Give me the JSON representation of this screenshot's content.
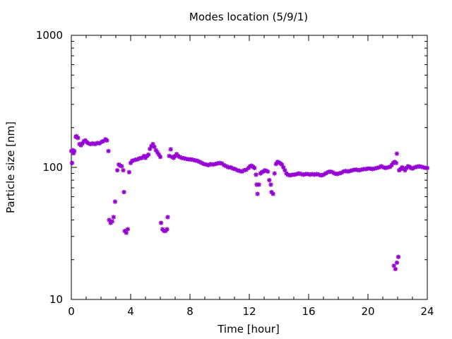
{
  "chart_data": {
    "type": "scatter",
    "title": "Modes location (5/9/1)",
    "xlabel": "Time [hour]",
    "ylabel": "Particle size [nm]",
    "xlim": [
      0,
      24
    ],
    "ylim": [
      10,
      1000
    ],
    "yscale": "log",
    "x_ticks": [
      0,
      4,
      8,
      12,
      16,
      20,
      24
    ],
    "x_tick_labels": [
      "0",
      "4",
      "8",
      "12",
      "16",
      "20",
      "24"
    ],
    "y_ticks": [
      10,
      100,
      1000
    ],
    "y_tick_labels": [
      "10",
      "100",
      "1000"
    ],
    "grid": false,
    "legend": false,
    "marker": "asterisk",
    "color": "#9400d3",
    "series": [
      {
        "points": [
          [
            0.0,
            133
          ],
          [
            0.05,
            108
          ],
          [
            0.1,
            135
          ],
          [
            0.15,
            128
          ],
          [
            0.2,
            133
          ],
          [
            0.3,
            170
          ],
          [
            0.35,
            172
          ],
          [
            0.45,
            167
          ],
          [
            0.55,
            150
          ],
          [
            0.65,
            147
          ],
          [
            0.75,
            152
          ],
          [
            0.85,
            158
          ],
          [
            0.95,
            160
          ],
          [
            1.05,
            155
          ],
          [
            1.15,
            152
          ],
          [
            1.3,
            150
          ],
          [
            1.45,
            152
          ],
          [
            1.6,
            150
          ],
          [
            1.75,
            153
          ],
          [
            1.9,
            152
          ],
          [
            2.05,
            156
          ],
          [
            2.15,
            158
          ],
          [
            2.3,
            163
          ],
          [
            2.4,
            160
          ],
          [
            2.5,
            133
          ],
          [
            2.55,
            40
          ],
          [
            2.65,
            38
          ],
          [
            2.75,
            39
          ],
          [
            2.85,
            42
          ],
          [
            2.95,
            55
          ],
          [
            3.1,
            95
          ],
          [
            3.2,
            105
          ],
          [
            3.3,
            103
          ],
          [
            3.4,
            102
          ],
          [
            3.5,
            95
          ],
          [
            3.55,
            65
          ],
          [
            3.6,
            33
          ],
          [
            3.7,
            32
          ],
          [
            3.8,
            34
          ],
          [
            3.9,
            92
          ],
          [
            4.0,
            108
          ],
          [
            4.1,
            112
          ],
          [
            4.2,
            113
          ],
          [
            4.3,
            114
          ],
          [
            4.45,
            115
          ],
          [
            4.6,
            117
          ],
          [
            4.75,
            118
          ],
          [
            4.9,
            122
          ],
          [
            5.0,
            118
          ],
          [
            5.1,
            122
          ],
          [
            5.2,
            125
          ],
          [
            5.3,
            138
          ],
          [
            5.4,
            145
          ],
          [
            5.5,
            150
          ],
          [
            5.6,
            143
          ],
          [
            5.7,
            135
          ],
          [
            5.8,
            130
          ],
          [
            5.9,
            125
          ],
          [
            6.0,
            120
          ],
          [
            6.05,
            38
          ],
          [
            6.15,
            34
          ],
          [
            6.25,
            33
          ],
          [
            6.35,
            33
          ],
          [
            6.45,
            34
          ],
          [
            6.5,
            42
          ],
          [
            6.6,
            122
          ],
          [
            6.7,
            137
          ],
          [
            6.8,
            120
          ],
          [
            6.9,
            118
          ],
          [
            7.0,
            122
          ],
          [
            7.1,
            126
          ],
          [
            7.2,
            122
          ],
          [
            7.3,
            120
          ],
          [
            7.45,
            118
          ],
          [
            7.6,
            117
          ],
          [
            7.75,
            116
          ],
          [
            7.9,
            115
          ],
          [
            8.05,
            115
          ],
          [
            8.2,
            114
          ],
          [
            8.35,
            113
          ],
          [
            8.5,
            112
          ],
          [
            8.65,
            110
          ],
          [
            8.8,
            108
          ],
          [
            8.95,
            106
          ],
          [
            9.1,
            105
          ],
          [
            9.25,
            104
          ],
          [
            9.4,
            106
          ],
          [
            9.55,
            105
          ],
          [
            9.7,
            106
          ],
          [
            9.85,
            107
          ],
          [
            10.0,
            108
          ],
          [
            10.15,
            107
          ],
          [
            10.3,
            104
          ],
          [
            10.45,
            102
          ],
          [
            10.6,
            100
          ],
          [
            10.75,
            100
          ],
          [
            10.9,
            98
          ],
          [
            11.05,
            97
          ],
          [
            11.2,
            95
          ],
          [
            11.35,
            94
          ],
          [
            11.5,
            93
          ],
          [
            11.65,
            95
          ],
          [
            11.8,
            96
          ],
          [
            11.95,
            99
          ],
          [
            12.05,
            102
          ],
          [
            12.15,
            103
          ],
          [
            12.25,
            101
          ],
          [
            12.35,
            99
          ],
          [
            12.45,
            88
          ],
          [
            12.5,
            74
          ],
          [
            12.55,
            63
          ],
          [
            12.65,
            74
          ],
          [
            12.75,
            90
          ],
          [
            12.85,
            92
          ],
          [
            12.95,
            93
          ],
          [
            13.05,
            95
          ],
          [
            13.15,
            94
          ],
          [
            13.25,
            93
          ],
          [
            13.35,
            80
          ],
          [
            13.45,
            74
          ],
          [
            13.5,
            65
          ],
          [
            13.6,
            63
          ],
          [
            13.7,
            90
          ],
          [
            13.8,
            106
          ],
          [
            13.9,
            110
          ],
          [
            14.0,
            109
          ],
          [
            14.1,
            107
          ],
          [
            14.2,
            105
          ],
          [
            14.3,
            100
          ],
          [
            14.4,
            95
          ],
          [
            14.5,
            90
          ],
          [
            14.6,
            88
          ],
          [
            14.75,
            87
          ],
          [
            14.9,
            88
          ],
          [
            15.05,
            88
          ],
          [
            15.2,
            89
          ],
          [
            15.35,
            90
          ],
          [
            15.5,
            89
          ],
          [
            15.65,
            88
          ],
          [
            15.8,
            89
          ],
          [
            15.95,
            89
          ],
          [
            16.1,
            88
          ],
          [
            16.25,
            89
          ],
          [
            16.4,
            88
          ],
          [
            16.55,
            89
          ],
          [
            16.7,
            88
          ],
          [
            16.85,
            87
          ],
          [
            17.0,
            88
          ],
          [
            17.15,
            90
          ],
          [
            17.3,
            92
          ],
          [
            17.45,
            93
          ],
          [
            17.6,
            92
          ],
          [
            17.75,
            90
          ],
          [
            17.9,
            89
          ],
          [
            18.05,
            90
          ],
          [
            18.2,
            91
          ],
          [
            18.35,
            93
          ],
          [
            18.5,
            94
          ],
          [
            18.65,
            93
          ],
          [
            18.8,
            94
          ],
          [
            18.95,
            95
          ],
          [
            19.1,
            96
          ],
          [
            19.25,
            96
          ],
          [
            19.4,
            95
          ],
          [
            19.55,
            96
          ],
          [
            19.7,
            97
          ],
          [
            19.85,
            97
          ],
          [
            20.0,
            98
          ],
          [
            20.15,
            98
          ],
          [
            20.3,
            97
          ],
          [
            20.45,
            98
          ],
          [
            20.6,
            99
          ],
          [
            20.75,
            100
          ],
          [
            20.9,
            102
          ],
          [
            21.05,
            100
          ],
          [
            21.2,
            99
          ],
          [
            21.35,
            100
          ],
          [
            21.5,
            101
          ],
          [
            21.6,
            104
          ],
          [
            21.7,
            108
          ],
          [
            21.8,
            110
          ],
          [
            21.9,
            108
          ],
          [
            21.95,
            127
          ],
          [
            21.75,
            18
          ],
          [
            21.85,
            17
          ],
          [
            21.95,
            19
          ],
          [
            22.05,
            21
          ],
          [
            22.1,
            95
          ],
          [
            22.2,
            97
          ],
          [
            22.3,
            100
          ],
          [
            22.4,
            98
          ],
          [
            22.5,
            95
          ],
          [
            22.6,
            99
          ],
          [
            22.7,
            102
          ],
          [
            22.8,
            101
          ],
          [
            22.9,
            99
          ],
          [
            23.0,
            98
          ],
          [
            23.15,
            100
          ],
          [
            23.3,
            101
          ],
          [
            23.45,
            102
          ],
          [
            23.6,
            101
          ],
          [
            23.75,
            100
          ],
          [
            23.9,
            99
          ],
          [
            24.0,
            99
          ]
        ]
      }
    ]
  }
}
